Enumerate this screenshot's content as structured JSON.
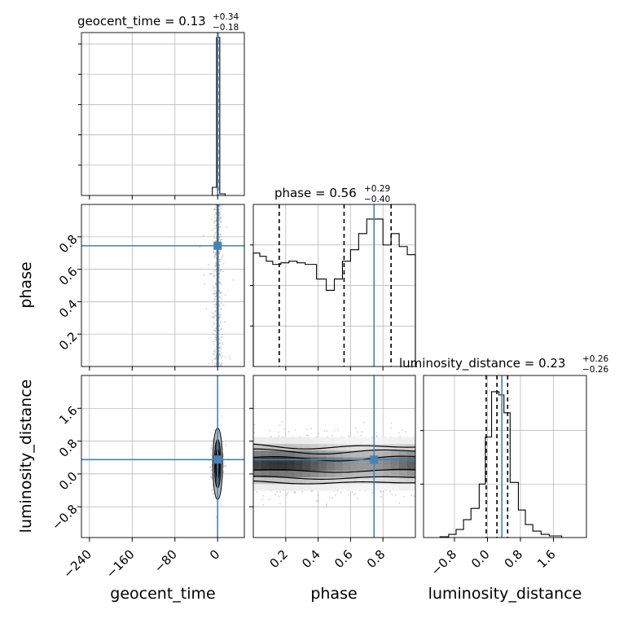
{
  "chart_data": {
    "type": "corner",
    "parameters": [
      "geocent_time",
      "phase",
      "luminosity_distance"
    ],
    "truth": {
      "geocent_time": 0,
      "phase": 0.745,
      "luminosity_distance": 0.35
    },
    "colors": {
      "truth": "#4682b4",
      "hist": "#000000",
      "grid": "#b0b0b0",
      "points": "#9a9a9a"
    },
    "grid": true,
    "panels": {
      "geocent_time_hist": {
        "title": {
          "name": "geocent_time",
          "value": "0.13",
          "upper": "+0.34",
          "lower": "−0.18"
        },
        "xlim": [
          -255,
          50
        ],
        "quantiles": [
          -0.05,
          0.13,
          0.47
        ],
        "bins": [
          {
            "x0": -10,
            "x1": -2,
            "h": 0.05
          },
          {
            "x0": -2,
            "x1": 4,
            "h": 0.97
          },
          {
            "x0": 4,
            "x1": 14,
            "h": 0.01
          }
        ]
      },
      "phase_hist": {
        "title": {
          "name": "phase",
          "value": "0.56",
          "upper": "+0.29",
          "lower": "−0.40"
        },
        "xlim": [
          0.0,
          1.0
        ],
        "quantiles": [
          0.16,
          0.56,
          0.85
        ],
        "bins": [
          {
            "x0": 0.0,
            "x1": 0.04,
            "h": 0.7
          },
          {
            "x0": 0.04,
            "x1": 0.08,
            "h": 0.68
          },
          {
            "x0": 0.08,
            "x1": 0.12,
            "h": 0.65
          },
          {
            "x0": 0.12,
            "x1": 0.17,
            "h": 0.63
          },
          {
            "x0": 0.17,
            "x1": 0.22,
            "h": 0.64
          },
          {
            "x0": 0.22,
            "x1": 0.27,
            "h": 0.65
          },
          {
            "x0": 0.27,
            "x1": 0.32,
            "h": 0.64
          },
          {
            "x0": 0.32,
            "x1": 0.39,
            "h": 0.63
          },
          {
            "x0": 0.39,
            "x1": 0.45,
            "h": 0.54
          },
          {
            "x0": 0.45,
            "x1": 0.5,
            "h": 0.47
          },
          {
            "x0": 0.5,
            "x1": 0.55,
            "h": 0.54
          },
          {
            "x0": 0.55,
            "x1": 0.6,
            "h": 0.65
          },
          {
            "x0": 0.6,
            "x1": 0.65,
            "h": 0.72
          },
          {
            "x0": 0.65,
            "x1": 0.7,
            "h": 0.82
          },
          {
            "x0": 0.7,
            "x1": 0.8,
            "h": 0.91
          },
          {
            "x0": 0.8,
            "x1": 0.85,
            "h": 0.75
          },
          {
            "x0": 0.85,
            "x1": 0.9,
            "h": 0.82
          },
          {
            "x0": 0.9,
            "x1": 0.95,
            "h": 0.74
          },
          {
            "x0": 0.95,
            "x1": 1.0,
            "h": 0.69
          }
        ]
      },
      "luminosity_distance_hist": {
        "title": {
          "name": "luminosity_distance",
          "value": "0.23",
          "upper": "+0.26",
          "lower": "−0.26"
        },
        "xlim": [
          -1.55,
          2.4
        ],
        "quantiles": [
          -0.03,
          0.23,
          0.49
        ],
        "bins": [
          {
            "x0": -1.15,
            "x1": -0.94,
            "h": 0.005
          },
          {
            "x0": -0.94,
            "x1": -0.76,
            "h": 0.02
          },
          {
            "x0": -0.76,
            "x1": -0.58,
            "h": 0.05
          },
          {
            "x0": -0.58,
            "x1": -0.4,
            "h": 0.11
          },
          {
            "x0": -0.4,
            "x1": -0.2,
            "h": 0.18
          },
          {
            "x0": -0.2,
            "x1": -0.05,
            "h": 0.33
          },
          {
            "x0": -0.05,
            "x1": 0.1,
            "h": 0.62
          },
          {
            "x0": 0.1,
            "x1": 0.28,
            "h": 0.9
          },
          {
            "x0": 0.28,
            "x1": 0.4,
            "h": 0.88
          },
          {
            "x0": 0.4,
            "x1": 0.55,
            "h": 0.77
          },
          {
            "x0": 0.55,
            "x1": 0.75,
            "h": 0.34
          },
          {
            "x0": 0.75,
            "x1": 0.92,
            "h": 0.17
          },
          {
            "x0": 0.92,
            "x1": 1.1,
            "h": 0.08
          },
          {
            "x0": 1.1,
            "x1": 1.3,
            "h": 0.04
          },
          {
            "x0": 1.3,
            "x1": 1.5,
            "h": 0.02
          },
          {
            "x0": 1.5,
            "x1": 1.8,
            "h": 0.01
          }
        ]
      },
      "phase_vs_geocent_time": {
        "xlim": [
          -255,
          50
        ],
        "ylim": [
          0.0,
          1.0
        ],
        "center_x": 0,
        "spread_x": 4
      },
      "luminosity_distance_vs_geocent_time": {
        "xlim": [
          -255,
          50
        ],
        "ylim": [
          -1.55,
          2.4
        ],
        "center_x": 0,
        "center_y": 0.25,
        "spread_x": 5,
        "spread_y": 0.26
      },
      "luminosity_distance_vs_phase": {
        "xlim": [
          0.0,
          1.0
        ],
        "ylim": [
          -1.55,
          2.4
        ],
        "center_y": 0.25,
        "spread_y": 0.26
      }
    },
    "axes": {
      "geocent_time": {
        "label": "geocent_time",
        "ticks": [
          -240,
          -160,
          -80,
          0
        ],
        "tick_labels": [
          "−240",
          "−160",
          "−80",
          "0"
        ]
      },
      "phase_x": {
        "label": "phase",
        "ticks": [
          0.2,
          0.4,
          0.6,
          0.8
        ],
        "tick_labels": [
          "0.2",
          "0.4",
          "0.6",
          "0.8"
        ]
      },
      "phase_y": {
        "label": "phase",
        "ticks": [
          0.2,
          0.4,
          0.6,
          0.8
        ],
        "tick_labels": [
          "0.2",
          "0.4",
          "0.6",
          "0.8"
        ]
      },
      "luminosity_distance_x": {
        "label": "luminosity_distance",
        "ticks": [
          -0.8,
          0.0,
          0.8,
          1.6
        ],
        "tick_labels": [
          "−0.8",
          "0.0",
          "0.8",
          "1.6"
        ]
      },
      "luminosity_distance_y": {
        "label": "luminosity_distance",
        "ticks": [
          -0.8,
          0.0,
          0.8,
          1.6
        ],
        "tick_labels": [
          "−0.8",
          "0.0",
          "0.8",
          "1.6"
        ]
      }
    }
  }
}
